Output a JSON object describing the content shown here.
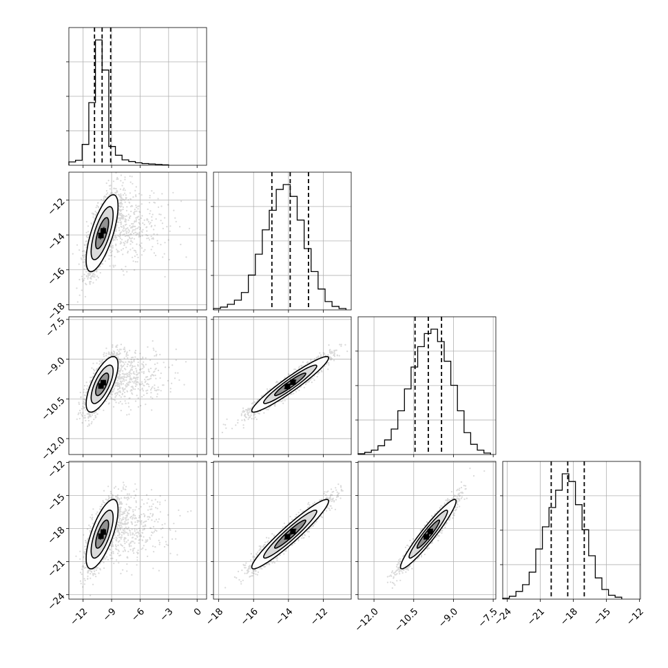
{
  "chart_data": {
    "type": "corner",
    "grid": true,
    "colors": {
      "ink": "#000000",
      "grid": "#b0b0b0",
      "points": "#555555",
      "frame": "#000000"
    },
    "parameters": [
      {
        "index": 0,
        "range": [
          -13.5,
          1.0
        ],
        "ticks": [
          "−12",
          "−9",
          "−6",
          "−3",
          "0"
        ],
        "tick_values": [
          -12,
          -9,
          -6,
          -3,
          0
        ],
        "median": -10.0,
        "q16": -10.8,
        "q84": -9.1,
        "mean": -10.0,
        "sd": 0.8
      },
      {
        "index": 1,
        "range": [
          -18.3,
          -10.4
        ],
        "ticks": [
          "−18",
          "−16",
          "−14",
          "−12"
        ],
        "tick_values": [
          -18,
          -16,
          -14,
          -12
        ],
        "median": -13.9,
        "q16": -14.95,
        "q84": -12.85,
        "mean": -13.9,
        "sd": 1.05
      },
      {
        "index": 2,
        "range": [
          -12.6,
          -7.4
        ],
        "ticks": [
          "−12.0",
          "−10.5",
          "−9.0",
          "−7.5"
        ],
        "tick_values": [
          -12.0,
          -10.5,
          -9.0,
          -7.5
        ],
        "median": -9.95,
        "q16": -10.45,
        "q84": -9.45,
        "mean": -9.95,
        "sd": 0.5
      },
      {
        "index": 3,
        "range": [
          -24.4,
          -11.9
        ],
        "ticks": [
          "−24",
          "−21",
          "−18",
          "−15",
          "−12"
        ],
        "tick_values": [
          -24,
          -21,
          -18,
          -15,
          -12
        ],
        "median": -18.5,
        "q16": -20.0,
        "q84": -17.0,
        "mean": -18.5,
        "sd": 1.5
      }
    ],
    "histograms": [
      {
        "param": 0,
        "bin_edges": [
          -13.5,
          -12.8,
          -12.1,
          -11.4,
          -10.7,
          -10.0,
          -9.3,
          -8.6,
          -7.9,
          -7.2,
          -6.5,
          -5.8,
          -5.1,
          -4.4,
          -3.7,
          -3.0
        ],
        "counts": [
          8,
          12,
          50,
          150,
          300,
          228,
          45,
          24,
          13,
          9,
          6,
          4,
          3,
          2,
          1
        ]
      },
      {
        "param": 1,
        "bin_edges": [
          -18.3,
          -17.9,
          -17.5,
          -17.1,
          -16.7,
          -16.3,
          -15.9,
          -15.5,
          -15.1,
          -14.7,
          -14.3,
          -13.9,
          -13.5,
          -13.1,
          -12.7,
          -12.3,
          -11.9,
          -11.5,
          -11.1,
          -10.7
        ],
        "counts": [
          2,
          4,
          8,
          14,
          25,
          50,
          80,
          115,
          143,
          173,
          180,
          163,
          129,
          88,
          55,
          30,
          12,
          5,
          2
        ]
      },
      {
        "param": 2,
        "bin_edges": [
          -12.6,
          -12.35,
          -12.1,
          -11.85,
          -11.6,
          -11.35,
          -11.1,
          -10.85,
          -10.6,
          -10.35,
          -10.1,
          -9.85,
          -9.6,
          -9.35,
          -9.1,
          -8.85,
          -8.6,
          -8.35,
          -8.1,
          -7.85,
          -7.6
        ],
        "counts": [
          1,
          3,
          6,
          12,
          20,
          35,
          60,
          90,
          120,
          148,
          166,
          172,
          155,
          128,
          95,
          60,
          30,
          14,
          6,
          2
        ]
      },
      {
        "param": 3,
        "bin_edges": [
          -24.4,
          -23.8,
          -23.2,
          -22.6,
          -22.0,
          -21.4,
          -20.8,
          -20.2,
          -19.6,
          -19.0,
          -18.4,
          -17.8,
          -17.2,
          -16.6,
          -16.0,
          -15.4,
          -14.8,
          -14.2,
          -13.6
        ],
        "counts": [
          1,
          3,
          8,
          15,
          28,
          52,
          75,
          95,
          113,
          130,
          122,
          98,
          72,
          45,
          22,
          10,
          4,
          2
        ]
      }
    ],
    "pairs": [
      {
        "x": 0,
        "y": 1,
        "rho": 0.7
      },
      {
        "x": 0,
        "y": 2,
        "rho": 0.7
      },
      {
        "x": 0,
        "y": 3,
        "rho": 0.7
      },
      {
        "x": 1,
        "y": 2,
        "rho": 0.95
      },
      {
        "x": 1,
        "y": 3,
        "rho": 0.95
      },
      {
        "x": 2,
        "y": 3,
        "rho": 0.95
      }
    ],
    "scatter_points_per_panel": 2500
  }
}
